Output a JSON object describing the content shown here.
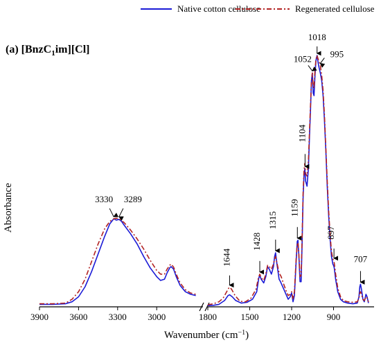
{
  "chart_data": {
    "type": "line",
    "panel_label": "(a) [BnzC",
    "panel_label_sub": "1",
    "panel_label_rest": "im][Cl]",
    "xlabel": "Wavenumber (cm",
    "xlabel_sup": "−1",
    "xlabel_end": ")",
    "ylabel": "Absorbance",
    "x_reversed": true,
    "x_break": true,
    "segments": [
      {
        "xlim": [
          3900,
          2650
        ],
        "ticks": [
          3900,
          3600,
          3300,
          3000
        ]
      },
      {
        "xlim": [
          1800,
          610
        ],
        "ticks": [
          1800,
          1500,
          1200,
          900
        ]
      }
    ],
    "ylim": [
      0,
      1.0
    ],
    "legend_position": "top",
    "series": [
      {
        "name": "Native cotton cellulose",
        "color": "#1a1ad6",
        "dash": "solid",
        "segments": [
          [
            [
              3900,
              0.01
            ],
            [
              3800,
              0.01
            ],
            [
              3700,
              0.012
            ],
            [
              3650,
              0.02
            ],
            [
              3600,
              0.04
            ],
            [
              3550,
              0.08
            ],
            [
              3500,
              0.14
            ],
            [
              3450,
              0.21
            ],
            [
              3400,
              0.28
            ],
            [
              3360,
              0.33
            ],
            [
              3330,
              0.35
            ],
            [
              3310,
              0.345
            ],
            [
              3289,
              0.348
            ],
            [
              3270,
              0.34
            ],
            [
              3250,
              0.325
            ],
            [
              3200,
              0.29
            ],
            [
              3150,
              0.25
            ],
            [
              3100,
              0.2
            ],
            [
              3050,
              0.155
            ],
            [
              3000,
              0.12
            ],
            [
              2970,
              0.105
            ],
            [
              2940,
              0.11
            ],
            [
              2920,
              0.135
            ],
            [
              2900,
              0.155
            ],
            [
              2890,
              0.16
            ],
            [
              2870,
              0.15
            ],
            [
              2850,
              0.12
            ],
            [
              2820,
              0.085
            ],
            [
              2780,
              0.06
            ],
            [
              2740,
              0.05
            ],
            [
              2700,
              0.045
            ]
          ],
          [
            [
              1800,
              0.005
            ],
            [
              1760,
              0.006
            ],
            [
              1720,
              0.01
            ],
            [
              1680,
              0.025
            ],
            [
              1655,
              0.045
            ],
            [
              1644,
              0.048
            ],
            [
              1625,
              0.04
            ],
            [
              1600,
              0.025
            ],
            [
              1560,
              0.015
            ],
            [
              1520,
              0.018
            ],
            [
              1480,
              0.03
            ],
            [
              1450,
              0.06
            ],
            [
              1435,
              0.115
            ],
            [
              1428,
              0.125
            ],
            [
              1418,
              0.11
            ],
            [
              1400,
              0.095
            ],
            [
              1385,
              0.12
            ],
            [
              1372,
              0.16
            ],
            [
              1360,
              0.15
            ],
            [
              1345,
              0.13
            ],
            [
              1330,
              0.16
            ],
            [
              1322,
              0.2
            ],
            [
              1315,
              0.215
            ],
            [
              1305,
              0.17
            ],
            [
              1290,
              0.11
            ],
            [
              1280,
              0.1
            ],
            [
              1260,
              0.075
            ],
            [
              1240,
              0.05
            ],
            [
              1225,
              0.03
            ],
            [
              1210,
              0.04
            ],
            [
              1200,
              0.055
            ],
            [
              1190,
              0.02
            ],
            [
              1180,
              0.045
            ],
            [
              1168,
              0.18
            ],
            [
              1160,
              0.26
            ],
            [
              1155,
              0.265
            ],
            [
              1148,
              0.2
            ],
            [
              1140,
              0.1
            ],
            [
              1132,
              0.1
            ],
            [
              1125,
              0.25
            ],
            [
              1118,
              0.43
            ],
            [
              1112,
              0.52
            ],
            [
              1106,
              0.55
            ],
            [
              1100,
              0.5
            ],
            [
              1090,
              0.48
            ],
            [
              1080,
              0.55
            ],
            [
              1072,
              0.68
            ],
            [
              1065,
              0.78
            ],
            [
              1058,
              0.9
            ],
            [
              1052,
              0.93
            ],
            [
              1046,
              0.85
            ],
            [
              1040,
              0.84
            ],
            [
              1033,
              0.92
            ],
            [
              1026,
              0.98
            ],
            [
              1018,
              1.0
            ],
            [
              1010,
              0.97
            ],
            [
              1005,
              0.955
            ],
            [
              995,
              0.93
            ],
            [
              985,
              0.9
            ],
            [
              975,
              0.84
            ],
            [
              965,
              0.74
            ],
            [
              955,
              0.62
            ],
            [
              945,
              0.48
            ],
            [
              935,
              0.36
            ],
            [
              925,
              0.27
            ],
            [
              915,
              0.2
            ],
            [
              905,
              0.17
            ],
            [
              900,
              0.165
            ],
            [
              895,
              0.155
            ],
            [
              885,
              0.11
            ],
            [
              870,
              0.06
            ],
            [
              850,
              0.03
            ],
            [
              830,
              0.02
            ],
            [
              800,
              0.015
            ],
            [
              760,
              0.012
            ],
            [
              730,
              0.015
            ],
            [
              718,
              0.04
            ],
            [
              712,
              0.08
            ],
            [
              707,
              0.09
            ],
            [
              700,
              0.07
            ],
            [
              690,
              0.03
            ],
            [
              680,
              0.02
            ],
            [
              668,
              0.05
            ],
            [
              660,
              0.04
            ],
            [
              650,
              0.015
            ]
          ]
        ]
      },
      {
        "name": "Regenerated cellulose",
        "color": "#b22222",
        "dash": "dashdot",
        "segments": [
          [
            [
              3900,
              0.012
            ],
            [
              3800,
              0.012
            ],
            [
              3700,
              0.015
            ],
            [
              3650,
              0.03
            ],
            [
              3600,
              0.06
            ],
            [
              3550,
              0.11
            ],
            [
              3500,
              0.18
            ],
            [
              3450,
              0.25
            ],
            [
              3400,
              0.31
            ],
            [
              3360,
              0.34
            ],
            [
              3330,
              0.35
            ],
            [
              3310,
              0.352
            ],
            [
              3289,
              0.35
            ],
            [
              3250,
              0.335
            ],
            [
              3200,
              0.305
            ],
            [
              3150,
              0.27
            ],
            [
              3100,
              0.23
            ],
            [
              3050,
              0.185
            ],
            [
              3000,
              0.145
            ],
            [
              2970,
              0.13
            ],
            [
              2940,
              0.13
            ],
            [
              2920,
              0.15
            ],
            [
              2900,
              0.165
            ],
            [
              2890,
              0.17
            ],
            [
              2870,
              0.158
            ],
            [
              2850,
              0.13
            ],
            [
              2820,
              0.095
            ],
            [
              2780,
              0.068
            ],
            [
              2740,
              0.055
            ],
            [
              2700,
              0.05
            ]
          ],
          [
            [
              1800,
              0.008
            ],
            [
              1760,
              0.012
            ],
            [
              1720,
              0.02
            ],
            [
              1690,
              0.035
            ],
            [
              1665,
              0.06
            ],
            [
              1650,
              0.075
            ],
            [
              1644,
              0.078
            ],
            [
              1630,
              0.07
            ],
            [
              1605,
              0.045
            ],
            [
              1570,
              0.022
            ],
            [
              1530,
              0.02
            ],
            [
              1490,
              0.035
            ],
            [
              1455,
              0.07
            ],
            [
              1438,
              0.115
            ],
            [
              1428,
              0.13
            ],
            [
              1418,
              0.115
            ],
            [
              1400,
              0.105
            ],
            [
              1385,
              0.13
            ],
            [
              1372,
              0.165
            ],
            [
              1360,
              0.16
            ],
            [
              1345,
              0.15
            ],
            [
              1330,
              0.17
            ],
            [
              1322,
              0.19
            ],
            [
              1315,
              0.2
            ],
            [
              1305,
              0.175
            ],
            [
              1290,
              0.135
            ],
            [
              1275,
              0.12
            ],
            [
              1260,
              0.095
            ],
            [
              1240,
              0.065
            ],
            [
              1225,
              0.045
            ],
            [
              1210,
              0.05
            ],
            [
              1200,
              0.06
            ],
            [
              1190,
              0.03
            ],
            [
              1180,
              0.06
            ],
            [
              1168,
              0.19
            ],
            [
              1160,
              0.25
            ],
            [
              1155,
              0.255
            ],
            [
              1148,
              0.205
            ],
            [
              1140,
              0.12
            ],
            [
              1132,
              0.125
            ],
            [
              1125,
              0.27
            ],
            [
              1118,
              0.45
            ],
            [
              1112,
              0.54
            ],
            [
              1106,
              0.57
            ],
            [
              1100,
              0.53
            ],
            [
              1090,
              0.52
            ],
            [
              1080,
              0.58
            ],
            [
              1072,
              0.7
            ],
            [
              1065,
              0.8
            ],
            [
              1058,
              0.9
            ],
            [
              1052,
              0.93
            ],
            [
              1046,
              0.88
            ],
            [
              1040,
              0.87
            ],
            [
              1033,
              0.94
            ],
            [
              1026,
              0.985
            ],
            [
              1018,
              1.0
            ],
            [
              1010,
              0.985
            ],
            [
              1000,
              0.97
            ],
            [
              995,
              0.96
            ],
            [
              985,
              0.92
            ],
            [
              975,
              0.86
            ],
            [
              965,
              0.76
            ],
            [
              955,
              0.63
            ],
            [
              945,
              0.5
            ],
            [
              935,
              0.38
            ],
            [
              925,
              0.29
            ],
            [
              915,
              0.22
            ],
            [
              905,
              0.19
            ],
            [
              900,
              0.185
            ],
            [
              895,
              0.175
            ],
            [
              885,
              0.13
            ],
            [
              870,
              0.075
            ],
            [
              850,
              0.04
            ],
            [
              830,
              0.025
            ],
            [
              800,
              0.02
            ],
            [
              760,
              0.018
            ],
            [
              730,
              0.02
            ],
            [
              718,
              0.035
            ],
            [
              712,
              0.055
            ],
            [
              707,
              0.06
            ],
            [
              700,
              0.05
            ],
            [
              690,
              0.03
            ],
            [
              680,
              0.025
            ],
            [
              668,
              0.04
            ],
            [
              660,
              0.035
            ],
            [
              650,
              0.02
            ]
          ]
        ]
      }
    ],
    "annotations": [
      {
        "label": "3330",
        "x": 3330,
        "y": 0.35
      },
      {
        "label": "3289",
        "x": 3289,
        "y": 0.35
      },
      {
        "label": "1644",
        "x": 1644,
        "y": 0.078
      },
      {
        "label": "1428",
        "x": 1428,
        "y": 0.13
      },
      {
        "label": "1315",
        "x": 1315,
        "y": 0.215
      },
      {
        "label": "1159",
        "x": 1159,
        "y": 0.265
      },
      {
        "label": "1104",
        "x": 1104,
        "y": 0.55
      },
      {
        "label": "1052",
        "x": 1052,
        "y": 0.93
      },
      {
        "label": "1018",
        "x": 1018,
        "y": 1.0
      },
      {
        "label": "995",
        "x": 995,
        "y": 0.96
      },
      {
        "label": "897",
        "x": 897,
        "y": 0.185
      },
      {
        "label": "707",
        "x": 707,
        "y": 0.09
      }
    ]
  }
}
